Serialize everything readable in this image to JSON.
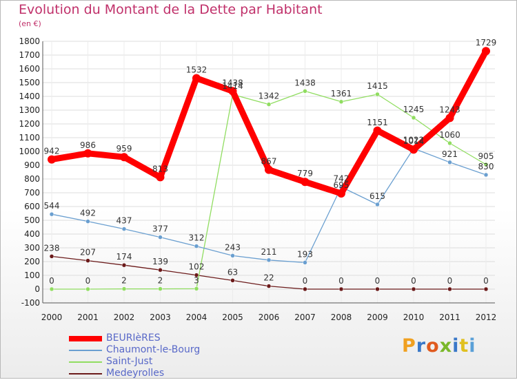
{
  "title": "Evolution du Montant de la Dette par Habitant",
  "unit": "(en €)",
  "brand": {
    "text": "Proxiti",
    "colors": [
      "#f0a020",
      "#3a78c8",
      "#e05a1e",
      "#7ab82a",
      "#3a78c8",
      "#e0c020",
      "#5aa0d8"
    ]
  },
  "chart_data": {
    "type": "line",
    "title": "Evolution du Montant de la Dette par Habitant",
    "ylabel": "(en €)",
    "x": [
      "2000",
      "2001",
      "2002",
      "2003",
      "2004",
      "2005",
      "2006",
      "2007",
      "2008",
      "2009",
      "2010",
      "2011",
      "2012"
    ],
    "ylim": [
      -100,
      1800
    ],
    "yticks": [
      -100,
      0,
      100,
      200,
      300,
      400,
      500,
      600,
      700,
      800,
      900,
      1000,
      1100,
      1200,
      1300,
      1400,
      1500,
      1600,
      1700,
      1800
    ],
    "grid": true,
    "legend": "bottom-left",
    "series": [
      {
        "name": "BEURIèRES",
        "color": "#ff0000",
        "width": 9,
        "values": [
          942,
          986,
          959,
          813,
          1532,
          1438,
          867,
          779,
          695,
          1151,
          1014,
          1243,
          1729
        ],
        "labels": [
          "942",
          "986",
          "959",
          "813",
          "1532",
          "1438",
          "867",
          "779",
          "695",
          "1151",
          "1014",
          "1243",
          "1729"
        ]
      },
      {
        "name": "Chaumont-le-Bourg",
        "color": "#6a9fd0",
        "width": 1.3,
        "values": [
          544,
          492,
          437,
          377,
          312,
          243,
          211,
          193,
          742,
          615,
          1022,
          921,
          830
        ],
        "labels": [
          "544",
          "492",
          "437",
          "377",
          "312",
          "243",
          "211",
          "193",
          "742",
          "615",
          "1022",
          "921",
          "830"
        ]
      },
      {
        "name": "Saint-Just",
        "color": "#90dd60",
        "width": 1.3,
        "values": [
          0,
          0,
          2,
          2,
          3,
          1414,
          1342,
          1438,
          1361,
          1415,
          1245,
          1060,
          905
        ],
        "labels": [
          "0",
          "0",
          "2",
          "2",
          "3",
          "1414",
          "1342",
          "1438",
          "1361",
          "1415",
          "1245",
          "1060",
          "905"
        ]
      },
      {
        "name": "Medeyrolles",
        "color": "#6b1a1a",
        "width": 1.3,
        "values": [
          238,
          207,
          174,
          139,
          102,
          63,
          22,
          0,
          0,
          0,
          0,
          0,
          0
        ],
        "labels": [
          "238",
          "207",
          "174",
          "139",
          "102",
          "63",
          "22",
          "0",
          "0",
          "0",
          "0",
          "0",
          "0"
        ]
      }
    ]
  }
}
